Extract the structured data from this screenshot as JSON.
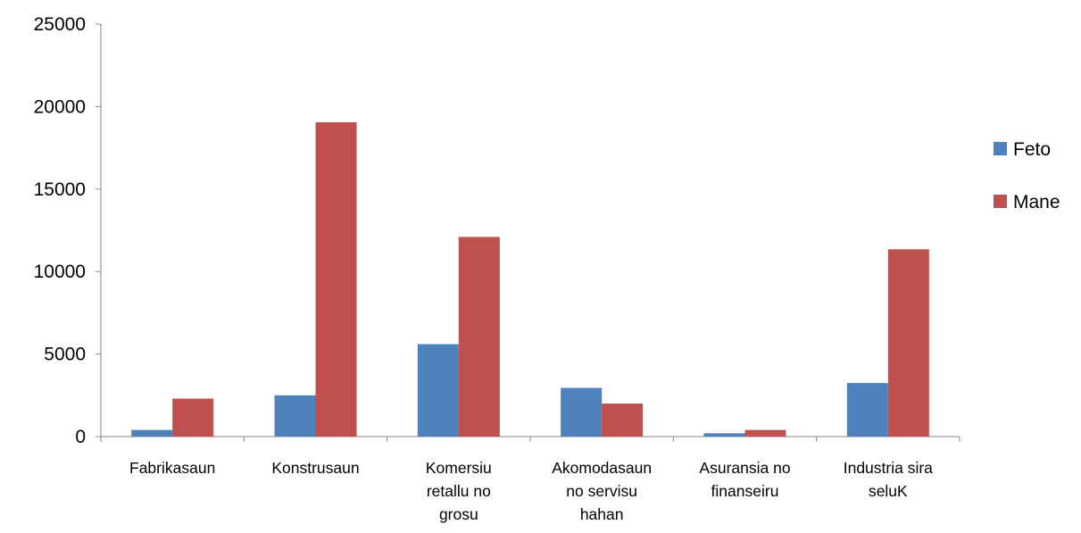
{
  "chart_data": {
    "type": "bar",
    "categories": [
      [
        "Fabrikasaun"
      ],
      [
        "Konstrusaun"
      ],
      [
        "Komersiu",
        "retallu no",
        "grosu"
      ],
      [
        "Akomodasaun",
        "no servisu",
        "hahan"
      ],
      [
        "Asuransia no",
        "finanseiru"
      ],
      [
        "Industria sira",
        "seluK"
      ]
    ],
    "series": [
      {
        "name": "Feto",
        "color": "#4f81bd",
        "values": [
          400,
          2500,
          5600,
          2950,
          200,
          3250
        ]
      },
      {
        "name": "Mane",
        "color": "#c0504d",
        "values": [
          2300,
          19050,
          12100,
          2000,
          400,
          11350
        ]
      }
    ],
    "yticks": [
      "0",
      "5000",
      "10000",
      "15000",
      "20000",
      "25000"
    ],
    "ylim": [
      0,
      25000
    ],
    "grid": false,
    "legend_position": "right"
  }
}
